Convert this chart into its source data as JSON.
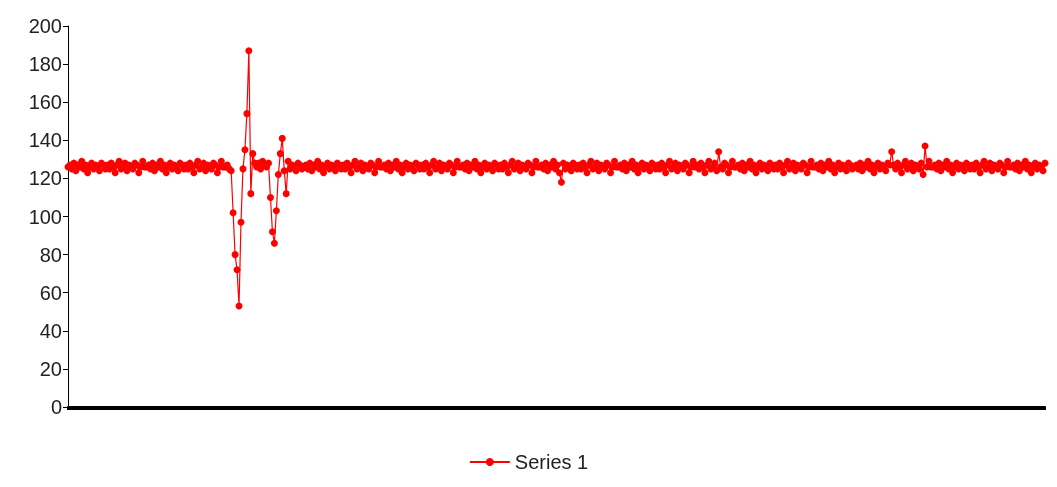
{
  "chart_data": {
    "type": "line",
    "categories": [
      null,
      null,
      null,
      null,
      null,
      null,
      null,
      null,
      null,
      null,
      null,
      null,
      null,
      null,
      null,
      null,
      null,
      null,
      null,
      null,
      null,
      null,
      null,
      null,
      null,
      null,
      null,
      null,
      null,
      null,
      null,
      null,
      null,
      null,
      null,
      null,
      null,
      null,
      null,
      null,
      null,
      null,
      null,
      null,
      null,
      null,
      null,
      null,
      null,
      null,
      null,
      null,
      null,
      null,
      null,
      null,
      null,
      null,
      null,
      null,
      null,
      null,
      null,
      null,
      null,
      null,
      null,
      null,
      null,
      null,
      null,
      null,
      null,
      null,
      null,
      null,
      null,
      null,
      null,
      null,
      null,
      null,
      null,
      null,
      null,
      null,
      null,
      null,
      null,
      null,
      null,
      null,
      null,
      null,
      null,
      null,
      null,
      null,
      null,
      null,
      null,
      null,
      null,
      null,
      null,
      null,
      null,
      null,
      null,
      null,
      null,
      null,
      null,
      null,
      null,
      null,
      null,
      null,
      null,
      null,
      null,
      null,
      null,
      null,
      null,
      null,
      null,
      null,
      null,
      null,
      null,
      null,
      null,
      null,
      null,
      null,
      null,
      null,
      null,
      null,
      null,
      null,
      null,
      null,
      null,
      null,
      null,
      null,
      null,
      null,
      null,
      null,
      null,
      null,
      null,
      null,
      null,
      null,
      null,
      null,
      null,
      null,
      null,
      null,
      null,
      null,
      null,
      null,
      null,
      null,
      null,
      null,
      null,
      null,
      null,
      null,
      null,
      null,
      null,
      null,
      null,
      null,
      null,
      null,
      null,
      null,
      null,
      null,
      null,
      null,
      null,
      null,
      null,
      null,
      null,
      null,
      null,
      null,
      null,
      null,
      null,
      null,
      null,
      null,
      null,
      null,
      null,
      null,
      null,
      null,
      null,
      null,
      null,
      null,
      null,
      null,
      null,
      null,
      null,
      null,
      null,
      null,
      null,
      null,
      null,
      null,
      null,
      null,
      null,
      null,
      null,
      null,
      null,
      null,
      null,
      null,
      null,
      null,
      null,
      null,
      null,
      null,
      null,
      null,
      null,
      null,
      null,
      null,
      null,
      null,
      null,
      null,
      null,
      null,
      null,
      null,
      null,
      null,
      null,
      null,
      null,
      null,
      null,
      null,
      null,
      null,
      null,
      null,
      null,
      null,
      null,
      null,
      null,
      null,
      null,
      null,
      null,
      null,
      null,
      null,
      null,
      null,
      null,
      null,
      null,
      null,
      null,
      null,
      null,
      null,
      null,
      null,
      null,
      null,
      null,
      null,
      null,
      null,
      null,
      null,
      null,
      null,
      null,
      null,
      null,
      null,
      null,
      null,
      null,
      null,
      null,
      null,
      null,
      null,
      null,
      null,
      null,
      null,
      null,
      null,
      null,
      null,
      null,
      null,
      null,
      null,
      null,
      null,
      null,
      null,
      null,
      null,
      null,
      null,
      null,
      null,
      null,
      null,
      null,
      null,
      null,
      null,
      null,
      null,
      null,
      null,
      null,
      null,
      null,
      null,
      null,
      null,
      null,
      null,
      null,
      null,
      null,
      null,
      null,
      null,
      null,
      null,
      null,
      null,
      null,
      null,
      null,
      null,
      null,
      null,
      null,
      null,
      null,
      null,
      null,
      null,
      null,
      null,
      null,
      null,
      null,
      null,
      null,
      null,
      null,
      null,
      null,
      null,
      null,
      null,
      null,
      null,
      null,
      null,
      null,
      null,
      null,
      null,
      null,
      null,
      null,
      null,
      null,
      null,
      null,
      null,
      null,
      null,
      null,
      null,
      null,
      null,
      null,
      null,
      null,
      null,
      null,
      null,
      null,
      null,
      null,
      null,
      null,
      null,
      null,
      null,
      null,
      null,
      null,
      null,
      null,
      null,
      null,
      null,
      null,
      null,
      null,
      null,
      null,
      null,
      null,
      null,
      null,
      null,
      null,
      null,
      null,
      null,
      null,
      null,
      null,
      null,
      null,
      null,
      null,
      null,
      null,
      null,
      null,
      null,
      null,
      null,
      null,
      null,
      null,
      null,
      null,
      null,
      null,
      null,
      null,
      null,
      null,
      null,
      null,
      null,
      null,
      null,
      null,
      null,
      null,
      null,
      null,
      null,
      null,
      null,
      null,
      null,
      null,
      null,
      null,
      null,
      null,
      null,
      null,
      null,
      null,
      null
    ],
    "series": [
      {
        "name": "Series 1",
        "color": "#ff0000",
        "values": [
          126,
          127,
          125,
          128,
          124,
          127,
          126,
          129,
          125,
          127,
          123,
          126,
          128,
          125,
          127,
          126,
          124,
          128,
          127,
          125,
          127,
          125,
          128,
          126,
          123,
          127,
          129,
          125,
          126,
          128,
          124,
          127,
          126,
          125,
          128,
          127,
          123,
          126,
          129,
          126,
          126,
          127,
          125,
          128,
          124,
          127,
          126,
          129,
          125,
          127,
          123,
          126,
          128,
          125,
          127,
          126,
          124,
          128,
          127,
          125,
          127,
          125,
          128,
          126,
          123,
          127,
          129,
          125,
          126,
          128,
          124,
          127,
          126,
          125,
          128,
          127,
          123,
          126,
          129,
          126,
          126,
          127,
          125,
          124,
          102,
          80,
          72,
          53,
          97,
          125,
          135,
          154,
          187,
          112,
          133,
          128,
          126,
          128,
          125,
          129,
          127,
          126,
          128,
          110,
          92,
          86,
          103,
          122,
          133,
          141,
          124,
          112,
          129,
          125,
          127,
          126,
          124,
          128,
          127,
          125,
          126,
          127,
          125,
          128,
          124,
          127,
          126,
          129,
          125,
          127,
          123,
          126,
          128,
          125,
          127,
          126,
          124,
          128,
          127,
          125,
          127,
          125,
          128,
          126,
          123,
          127,
          129,
          125,
          126,
          128,
          124,
          127,
          126,
          125,
          128,
          127,
          123,
          126,
          129,
          126,
          126,
          127,
          125,
          128,
          124,
          127,
          126,
          129,
          125,
          127,
          123,
          126,
          128,
          125,
          127,
          126,
          124,
          128,
          127,
          125,
          127,
          125,
          128,
          126,
          123,
          127,
          129,
          125,
          126,
          128,
          124,
          127,
          126,
          125,
          128,
          127,
          123,
          126,
          129,
          126,
          126,
          127,
          125,
          128,
          124,
          127,
          126,
          129,
          125,
          127,
          123,
          126,
          128,
          125,
          127,
          126,
          124,
          128,
          127,
          125,
          127,
          125,
          128,
          126,
          123,
          127,
          129,
          125,
          126,
          128,
          124,
          127,
          126,
          125,
          128,
          127,
          123,
          126,
          129,
          126,
          126,
          127,
          125,
          128,
          124,
          127,
          126,
          129,
          125,
          127,
          123,
          118,
          128,
          125,
          127,
          126,
          124,
          128,
          127,
          125,
          127,
          125,
          128,
          126,
          123,
          127,
          129,
          125,
          126,
          128,
          124,
          127,
          126,
          125,
          128,
          127,
          123,
          126,
          129,
          126,
          126,
          127,
          125,
          128,
          124,
          127,
          126,
          129,
          125,
          127,
          123,
          126,
          128,
          125,
          127,
          126,
          124,
          128,
          127,
          125,
          127,
          125,
          128,
          126,
          123,
          127,
          129,
          125,
          126,
          128,
          124,
          127,
          126,
          125,
          128,
          127,
          123,
          126,
          129,
          126,
          127,
          125,
          128,
          126,
          123,
          127,
          129,
          125,
          126,
          128,
          124,
          134,
          126,
          125,
          128,
          127,
          123,
          126,
          129,
          126,
          126,
          127,
          125,
          128,
          124,
          127,
          126,
          129,
          125,
          127,
          123,
          126,
          128,
          125,
          127,
          126,
          124,
          128,
          127,
          125,
          127,
          125,
          128,
          126,
          123,
          127,
          129,
          125,
          126,
          128,
          124,
          127,
          126,
          125,
          128,
          127,
          123,
          126,
          129,
          126,
          126,
          127,
          125,
          128,
          124,
          127,
          126,
          129,
          125,
          127,
          123,
          126,
          128,
          125,
          127,
          126,
          124,
          128,
          127,
          125,
          126,
          127,
          125,
          128,
          124,
          127,
          126,
          129,
          125,
          127,
          123,
          126,
          128,
          125,
          127,
          126,
          124,
          128,
          127,
          134,
          127,
          125,
          128,
          126,
          123,
          127,
          129,
          125,
          126,
          128,
          124,
          127,
          126,
          125,
          128,
          122,
          137,
          126,
          129,
          126,
          126,
          127,
          125,
          128,
          124,
          127,
          126,
          129,
          125,
          127,
          123,
          126,
          128,
          125,
          127,
          126,
          124,
          128,
          127,
          125,
          127,
          125,
          128,
          126,
          123,
          127,
          129,
          125,
          126,
          128,
          124,
          127,
          126,
          125,
          128,
          127,
          123,
          126,
          129,
          126,
          126,
          127,
          125,
          128,
          124,
          127,
          126,
          129,
          125,
          127,
          123,
          126,
          128,
          125,
          127,
          126,
          124,
          128
        ]
      }
    ],
    "ylim": [
      0,
      200
    ],
    "yticks": [
      0,
      20,
      40,
      60,
      80,
      100,
      120,
      140,
      160,
      180,
      200
    ],
    "grid": false,
    "legend": "bottom",
    "marker": "circle",
    "line_style": "solid"
  }
}
